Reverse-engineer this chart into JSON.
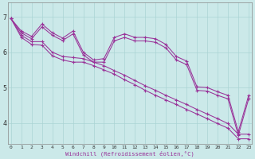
{
  "background_color": "#cbe9e9",
  "line_color": "#993399",
  "grid_color": "#aad4d4",
  "xlabel": "Windchill (Refroidissement éolien,°C)",
  "ylabel_ticks": [
    4,
    5,
    6,
    7
  ],
  "xlim": [
    -0.3,
    23.3
  ],
  "ylim": [
    3.4,
    7.4
  ],
  "xticks": [
    0,
    1,
    2,
    3,
    4,
    5,
    6,
    7,
    8,
    9,
    10,
    11,
    12,
    13,
    14,
    15,
    16,
    17,
    18,
    19,
    20,
    21,
    22,
    23
  ],
  "series": [
    [
      6.95,
      6.6,
      6.45,
      6.8,
      6.55,
      6.4,
      6.6,
      6.0,
      5.78,
      5.82,
      6.42,
      6.52,
      6.42,
      6.42,
      6.38,
      6.22,
      5.88,
      5.75,
      5.02,
      5.0,
      4.88,
      4.78,
      3.75,
      4.78
    ],
    [
      6.95,
      6.55,
      6.38,
      6.72,
      6.48,
      6.33,
      6.52,
      5.92,
      5.72,
      5.72,
      6.32,
      6.42,
      6.32,
      6.32,
      6.28,
      6.12,
      5.78,
      5.65,
      4.92,
      4.9,
      4.78,
      4.68,
      3.65,
      4.68
    ],
    [
      6.95,
      6.48,
      6.3,
      6.3,
      6.0,
      5.88,
      5.85,
      5.82,
      5.72,
      5.62,
      5.48,
      5.35,
      5.2,
      5.05,
      4.92,
      4.78,
      4.65,
      4.52,
      4.38,
      4.25,
      4.12,
      3.98,
      3.68,
      3.68
    ],
    [
      6.95,
      6.42,
      6.22,
      6.2,
      5.9,
      5.78,
      5.72,
      5.72,
      5.62,
      5.5,
      5.38,
      5.22,
      5.08,
      4.92,
      4.78,
      4.65,
      4.52,
      4.38,
      4.25,
      4.12,
      3.98,
      3.85,
      3.55,
      3.55
    ]
  ]
}
